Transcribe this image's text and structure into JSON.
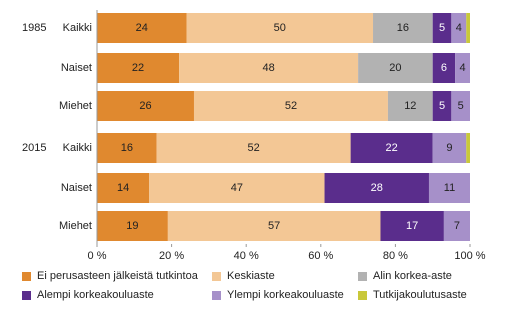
{
  "chart_data": {
    "type": "stacked-bar-horizontal",
    "categories": [
      "Kaikki",
      "Naiset",
      "Miehet",
      "Kaikki",
      "Naiset",
      "Miehet"
    ],
    "groups": [
      "1985",
      "2015"
    ],
    "series": [
      {
        "name": "Ei perusasteen jälkeistä tutkintoa",
        "color": "#e0892f",
        "values": [
          24,
          22,
          26,
          16,
          14,
          19
        ]
      },
      {
        "name": "Keskiaste",
        "color": "#f3c795",
        "values": [
          50,
          48,
          52,
          52,
          47,
          57
        ]
      },
      {
        "name": "Alin korkea-aste",
        "color": "#b2b2b2",
        "values": [
          16,
          20,
          12,
          0,
          0,
          0
        ]
      },
      {
        "name": "Alempi korkeakouluaste",
        "color": "#5a2d8c",
        "values": [
          5,
          6,
          5,
          22,
          28,
          17
        ]
      },
      {
        "name": "Ylempi korkeakouluaste",
        "color": "#a690c9",
        "values": [
          4,
          4,
          5,
          9,
          11,
          7
        ]
      },
      {
        "name": "Tutkijakoulutusaste",
        "color": "#c9c83a",
        "values": [
          1,
          0,
          0,
          1,
          0,
          0
        ]
      }
    ],
    "xlim": [
      0,
      100
    ],
    "xticks": [
      {
        "value": 0,
        "label": "0 %"
      },
      {
        "value": 20,
        "label": "20 %"
      },
      {
        "value": 40,
        "label": "40 %"
      },
      {
        "value": 60,
        "label": "60 %"
      },
      {
        "value": 80,
        "label": "80 %"
      },
      {
        "value": 100,
        "label": "100 %"
      }
    ]
  }
}
